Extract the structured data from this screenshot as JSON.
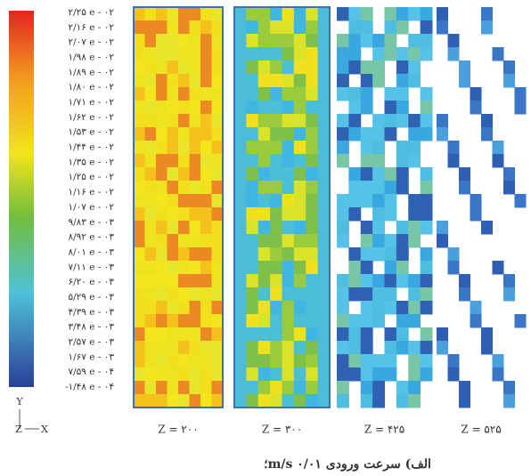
{
  "colorbar": {
    "labels": [
      "۲/۲۵ e - ۰۲",
      "۲/۱۶ e - ۰۲",
      "۲/۰۷ e - ۰۲",
      "۱/۹۸ e - ۰۲",
      "۱/۸۹ e - ۰۲",
      "۱/۸۰ e - ۰۲",
      "۱/۷۱ e - ۰۲",
      "۱/۶۲ e - ۰۲",
      "۱/۵۳ e - ۰۲",
      "۱/۴۴ e - ۰۲",
      "۱/۳۵ e - ۰۲",
      "۱/۲۵ e - ۰۲",
      "۱/۱۶ e - ۰۲",
      "۱/۰۷ e - ۰۲",
      "۹/۸۳ e - ۰۳",
      "۸/۹۲ e - ۰۳",
      "۸/۰۱ e - ۰۳",
      "۷/۱۱ e - ۰۳",
      "۶/۲۰ e - ۰۳",
      "۵/۲۹ e - ۰۳",
      "۴/۳۹ e - ۰۳",
      "۳/۴۸ e - ۰۳",
      "۲/۵۷ e - ۰۳",
      "۱/۶۷ e - ۰۳",
      "۷/۵۹ e - ۰۴",
      "-۱/۴۸ e - ۰۴"
    ]
  },
  "axes": {
    "y": "Y",
    "z": "Z",
    "x": "X"
  },
  "panels": [
    {
      "label": "Z = ۲۰۰"
    },
    {
      "label": "Z = ۳۰۰"
    },
    {
      "label": "Z = ۴۲۵"
    },
    {
      "label": "Z = ۵۲۵"
    }
  ],
  "caption": "الف) سرعت ورودی m/s ۰/۰۱؛"
}
